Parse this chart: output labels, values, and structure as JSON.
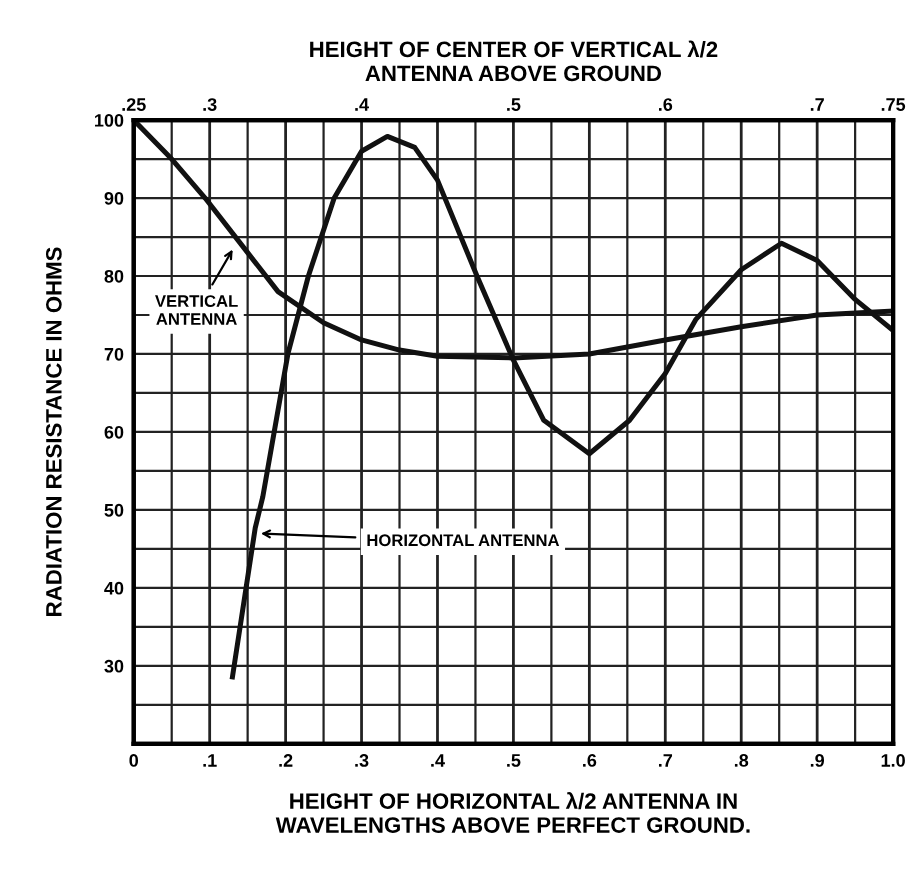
{
  "chart_data": {
    "type": "line",
    "xlabel": "HEIGHT OF HORIZONTAL λ/2 ANTENNA IN\nWAVELENGTHS ABOVE PERFECT GROUND.",
    "x2label": "HEIGHT OF CENTER OF VERTICAL λ/2\nANTENNA ABOVE GROUND",
    "ylabel": "RADIATION RESISTANCE IN OHMS",
    "xlim": [
      0,
      1.0
    ],
    "xticks": [
      0,
      {
        "value": 0.1,
        "label": ".1"
      },
      {
        "value": 0.2,
        "label": ".2"
      },
      {
        "value": 0.3,
        "label": ".3"
      },
      {
        "value": 0.4,
        "label": ".4"
      },
      {
        "value": 0.5,
        "label": ".5"
      },
      {
        "value": 0.6,
        "label": ".6"
      },
      {
        "value": 0.7,
        "label": ".7"
      },
      {
        "value": 0.8,
        "label": ".8"
      },
      {
        "value": 0.9,
        "label": ".9"
      },
      {
        "value": 1.0,
        "label": "1.0"
      }
    ],
    "x2lim": [
      0.25,
      0.75
    ],
    "x2ticks": [
      {
        "value": 0.25,
        "label": ".25"
      },
      {
        "value": 0.3,
        "label": ".3"
      },
      {
        "value": 0.4,
        "label": ".4"
      },
      {
        "value": 0.5,
        "label": ".5"
      },
      {
        "value": 0.6,
        "label": ".6"
      },
      {
        "value": 0.7,
        "label": ".7"
      },
      {
        "value": 0.75,
        "label": ".75"
      }
    ],
    "ylim": [
      20,
      100
    ],
    "yticks": [
      30,
      40,
      50,
      60,
      70,
      80,
      90,
      100
    ],
    "grid": true,
    "marker": "none",
    "line_style": "solid",
    "series": [
      {
        "color": "#111111",
        "x": [
          0,
          0.05,
          0.094,
          0.15,
          0.19,
          0.25,
          0.3,
          0.35,
          0.4,
          0.5,
          0.6,
          0.7,
          0.8,
          0.9,
          1.0
        ],
        "values": [
          100,
          95,
          90,
          83,
          78,
          74,
          71.8,
          70.5,
          69.7,
          69.5,
          70,
          71.8,
          73.5,
          75,
          75.5
        ]
      },
      {
        "color": "#111111",
        "x": [
          0.13,
          0.16,
          0.17,
          0.203,
          0.23,
          0.264,
          0.3,
          0.334,
          0.37,
          0.4,
          0.452,
          0.5,
          0.54,
          0.6,
          0.653,
          0.7,
          0.74,
          0.8,
          0.853,
          0.9,
          0.95,
          1.0
        ],
        "values": [
          28.6,
          47.7,
          51.7,
          70,
          80,
          90,
          96,
          97.9,
          96.5,
          92.3,
          80,
          69.2,
          61.5,
          57.2,
          61.5,
          67.5,
          74.4,
          80.8,
          84.2,
          82,
          77,
          73
        ]
      }
    ],
    "annotations": [
      {
        "text": "VERTICAL\nANTENNA",
        "x": 0.134,
        "y": 84
      },
      {
        "text": "HORIZONTAL ANTENNA",
        "x": 0.16,
        "y": 47
      }
    ]
  }
}
